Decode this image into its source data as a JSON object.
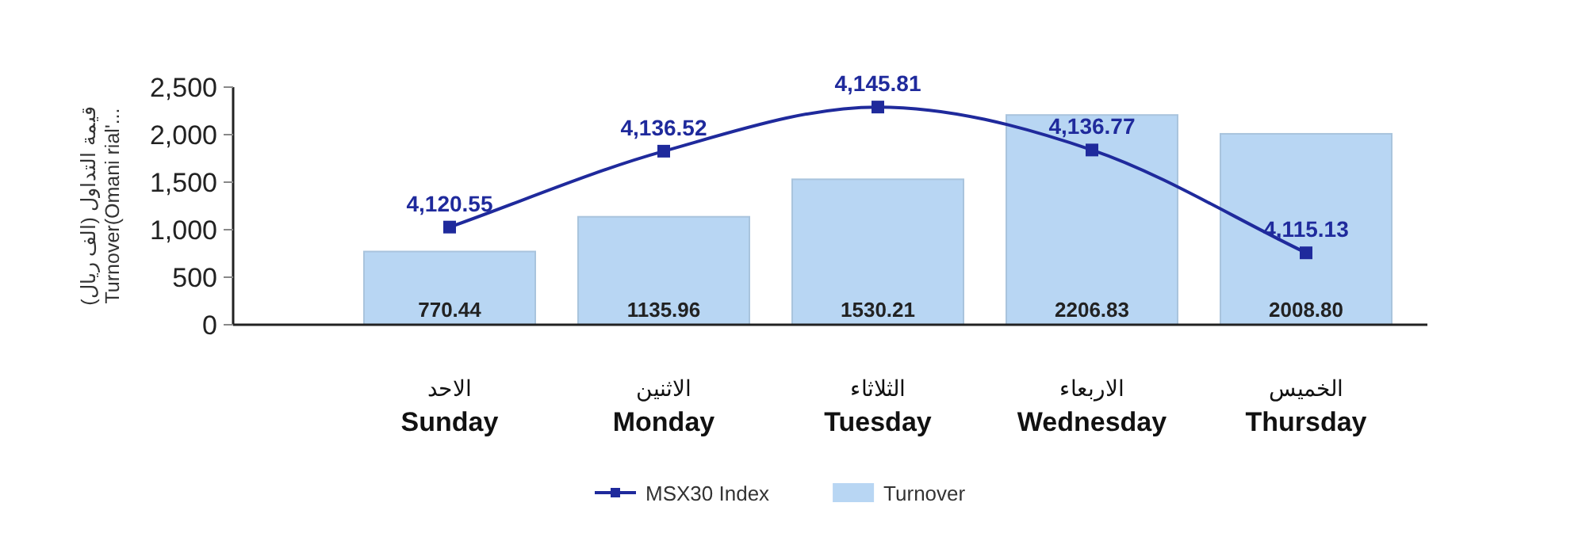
{
  "chart_data": {
    "type": "bar",
    "ylabel": "(قيمة التداول (الف ريال\nTurnover(Omani rial'...",
    "categories": [
      "الاحد\nSunday",
      "الاثنين\nMonday",
      "الثلاثاء\nTuesday",
      "الاربعاء\nWednesday",
      "الخميس\nThursday"
    ],
    "ylim": [
      0,
      2500
    ],
    "yticks": [
      {
        "value": 0,
        "label": "0"
      },
      {
        "value": 500,
        "label": "500"
      },
      {
        "value": 1000,
        "label": "1,000"
      },
      {
        "value": 1500,
        "label": "1,500"
      },
      {
        "value": 2000,
        "label": "2,000"
      },
      {
        "value": 2500,
        "label": "2,500"
      }
    ],
    "y2lim": [
      4100,
      4150
    ],
    "legend": "bottom",
    "marker": "square",
    "grid": false,
    "series": [
      {
        "name": "MSX30 Index",
        "type": "line",
        "axis": "y2",
        "color": "#1f2a9c",
        "values": [
          4120.55,
          4136.52,
          4145.81,
          4136.77,
          4115.13
        ],
        "value_labels": [
          "4,120.55",
          "4,136.52",
          "4,145.81",
          "4,136.77",
          "4,115.13"
        ]
      },
      {
        "name": "Turnover",
        "color": "#b8d6f3",
        "values": [
          770.44,
          1135.96,
          1530.21,
          2206.83,
          2008.8
        ],
        "value_labels": [
          "770.44",
          "1135.96",
          "1530.21",
          "2206.83",
          "2008.80"
        ]
      }
    ]
  }
}
